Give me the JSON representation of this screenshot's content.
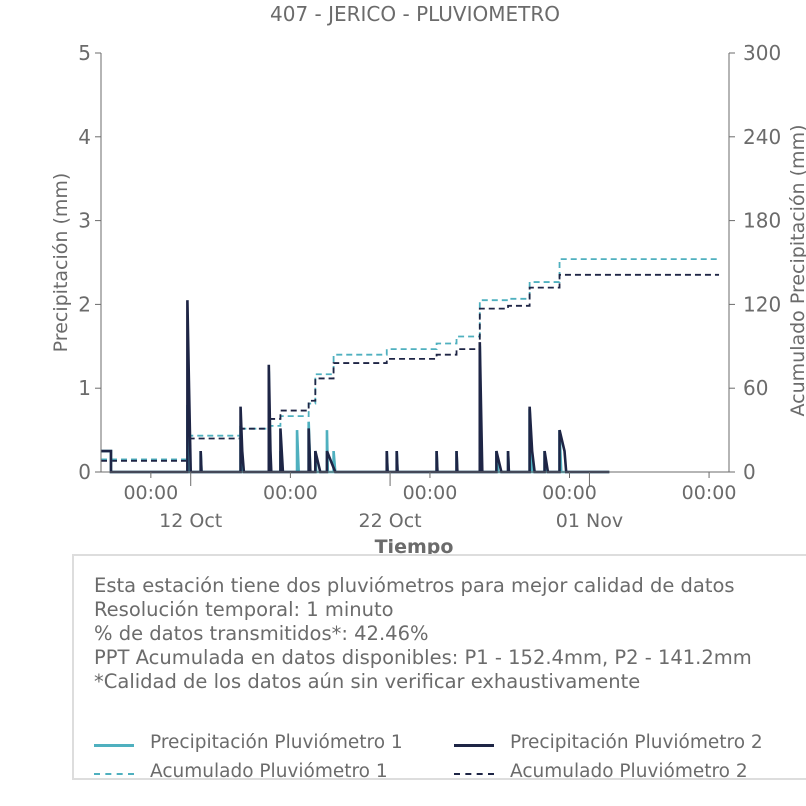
{
  "colors": {
    "p1": "#4fb0bf",
    "p2": "#1e2545",
    "axis": "#6b6b6b"
  },
  "chart_data": {
    "type": "line",
    "title": "407 - JERICO - PLUVIOMETRO",
    "xlabel": "Tiempo",
    "ylabel_left": "Precipitación (mm)",
    "ylabel_right": "Acumulado Precipitación (mm)",
    "ylim_left": [
      0,
      5
    ],
    "ylim_right": [
      0,
      300
    ],
    "yticks_left": [
      "0",
      "1",
      "2",
      "3",
      "4",
      "5"
    ],
    "yticks_right": [
      "0",
      "60",
      "120",
      "180",
      "240",
      "300"
    ],
    "xlim": [
      "2023-10-07T12:00",
      "2023-11-08T00:00"
    ],
    "xticks_time": [
      {
        "x": "2023-10-10T00:00",
        "label": "00:00"
      },
      {
        "x": "2023-10-17T00:00",
        "label": "00:00"
      },
      {
        "x": "2023-10-24T00:00",
        "label": "00:00"
      },
      {
        "x": "2023-10-31T00:00",
        "label": "00:00"
      },
      {
        "x": "2023-11-07T00:00",
        "label": "00:00"
      }
    ],
    "xticks_date": [
      {
        "x": "2023-10-12T00:00",
        "label": "12 Oct"
      },
      {
        "x": "2023-10-22T00:00",
        "label": "22 Oct"
      },
      {
        "x": "2023-11-01T00:00",
        "label": "01 Nov"
      }
    ],
    "legend_position": "bottom",
    "grid": false,
    "series": [
      {
        "name": "Precipitación Pluviómetro 1",
        "axis": "left",
        "style": "solid",
        "color": "#4fb0bf",
        "points": [
          [
            "2023-10-07T12:00",
            0.25
          ],
          [
            "2023-10-08T00:00",
            0.25
          ],
          [
            "2023-10-08T00:00",
            0
          ],
          [
            "2023-10-11T20:00",
            0
          ],
          [
            "2023-10-11T20:00",
            0.8
          ],
          [
            "2023-10-11T21:00",
            0
          ],
          [
            "2023-10-12T12:00",
            0
          ],
          [
            "2023-10-12T12:00",
            0.25
          ],
          [
            "2023-10-12T13:00",
            0
          ],
          [
            "2023-10-14T12:00",
            0
          ],
          [
            "2023-10-14T12:00",
            0.55
          ],
          [
            "2023-10-14T15:00",
            0
          ],
          [
            "2023-10-15T22:00",
            0
          ],
          [
            "2023-10-15T22:00",
            1.2
          ],
          [
            "2023-10-15T23:00",
            0
          ],
          [
            "2023-10-16T12:00",
            0
          ],
          [
            "2023-10-16T12:00",
            0.25
          ],
          [
            "2023-10-16T13:00",
            0
          ],
          [
            "2023-10-17T08:00",
            0
          ],
          [
            "2023-10-17T08:00",
            0.5
          ],
          [
            "2023-10-17T10:00",
            0
          ],
          [
            "2023-10-17T22:00",
            0
          ],
          [
            "2023-10-17T22:00",
            0.6
          ],
          [
            "2023-10-18T00:00",
            0
          ],
          [
            "2023-10-18T06:00",
            0
          ],
          [
            "2023-10-18T06:00",
            0.25
          ],
          [
            "2023-10-18T07:00",
            0
          ],
          [
            "2023-10-18T20:00",
            0
          ],
          [
            "2023-10-18T20:00",
            0.5
          ],
          [
            "2023-10-18T21:00",
            0
          ],
          [
            "2023-10-19T04:00",
            0
          ],
          [
            "2023-10-19T04:00",
            0.25
          ],
          [
            "2023-10-19T06:00",
            0
          ],
          [
            "2023-10-21T20:00",
            0
          ],
          [
            "2023-10-21T20:00",
            0.25
          ],
          [
            "2023-10-21T21:00",
            0
          ],
          [
            "2023-10-22T08:00",
            0
          ],
          [
            "2023-10-22T08:00",
            0.25
          ],
          [
            "2023-10-22T09:00",
            0
          ],
          [
            "2023-10-24T08:00",
            0
          ],
          [
            "2023-10-24T08:00",
            0.25
          ],
          [
            "2023-10-24T09:00",
            0
          ],
          [
            "2023-10-25T08:00",
            0
          ],
          [
            "2023-10-25T08:00",
            0.25
          ],
          [
            "2023-10-25T09:00",
            0
          ],
          [
            "2023-10-26T12:00",
            0
          ],
          [
            "2023-10-26T12:00",
            1.5
          ],
          [
            "2023-10-26T13:00",
            0
          ],
          [
            "2023-10-27T08:00",
            0
          ],
          [
            "2023-10-27T08:00",
            0.25
          ],
          [
            "2023-10-27T10:00",
            0
          ],
          [
            "2023-10-27T22:00",
            0
          ],
          [
            "2023-10-27T22:00",
            0.25
          ],
          [
            "2023-10-27T23:00",
            0
          ],
          [
            "2023-10-29T00:00",
            0
          ],
          [
            "2023-10-29T00:00",
            0.75
          ],
          [
            "2023-10-29T03:00",
            0
          ],
          [
            "2023-10-29T18:00",
            0
          ],
          [
            "2023-10-29T18:00",
            0.25
          ],
          [
            "2023-10-29T20:00",
            0
          ],
          [
            "2023-10-30T12:00",
            0
          ],
          [
            "2023-10-30T12:00",
            0.5
          ],
          [
            "2023-10-30T14:00",
            0
          ],
          [
            "2023-11-02T00:00",
            0
          ]
        ]
      },
      {
        "name": "Precipitación Pluviómetro 2",
        "axis": "left",
        "style": "solid",
        "color": "#1e2545",
        "points": [
          [
            "2023-10-07T12:00",
            0.25
          ],
          [
            "2023-10-08T00:00",
            0.25
          ],
          [
            "2023-10-08T00:00",
            0
          ],
          [
            "2023-10-11T20:00",
            0
          ],
          [
            "2023-10-11T20:00",
            2.05
          ],
          [
            "2023-10-11T22:00",
            1.0
          ],
          [
            "2023-10-12T00:00",
            0
          ],
          [
            "2023-10-12T12:00",
            0
          ],
          [
            "2023-10-12T12:00",
            0.25
          ],
          [
            "2023-10-12T13:00",
            0
          ],
          [
            "2023-10-14T12:00",
            0
          ],
          [
            "2023-10-14T12:00",
            0.78
          ],
          [
            "2023-10-14T14:00",
            0.25
          ],
          [
            "2023-10-14T16:00",
            0
          ],
          [
            "2023-10-15T22:00",
            0
          ],
          [
            "2023-10-15T22:00",
            1.28
          ],
          [
            "2023-10-16T00:00",
            0.25
          ],
          [
            "2023-10-16T01:00",
            0
          ],
          [
            "2023-10-16T12:00",
            0
          ],
          [
            "2023-10-16T12:00",
            0.52
          ],
          [
            "2023-10-16T15:00",
            0
          ],
          [
            "2023-10-17T22:00",
            0
          ],
          [
            "2023-10-17T22:00",
            0.52
          ],
          [
            "2023-10-18T00:00",
            0
          ],
          [
            "2023-10-18T06:00",
            0
          ],
          [
            "2023-10-18T06:00",
            0.25
          ],
          [
            "2023-10-18T12:00",
            0
          ],
          [
            "2023-10-18T20:00",
            0
          ],
          [
            "2023-10-18T20:00",
            0.25
          ],
          [
            "2023-10-19T06:00",
            0
          ],
          [
            "2023-10-21T20:00",
            0
          ],
          [
            "2023-10-21T20:00",
            0.25
          ],
          [
            "2023-10-21T21:00",
            0
          ],
          [
            "2023-10-22T08:00",
            0
          ],
          [
            "2023-10-22T08:00",
            0.25
          ],
          [
            "2023-10-22T09:00",
            0
          ],
          [
            "2023-10-24T08:00",
            0
          ],
          [
            "2023-10-24T08:00",
            0.25
          ],
          [
            "2023-10-24T09:00",
            0
          ],
          [
            "2023-10-25T08:00",
            0
          ],
          [
            "2023-10-25T08:00",
            0.25
          ],
          [
            "2023-10-25T09:00",
            0
          ],
          [
            "2023-10-26T12:00",
            0
          ],
          [
            "2023-10-26T12:00",
            1.55
          ],
          [
            "2023-10-26T14:00",
            0.5
          ],
          [
            "2023-10-26T15:00",
            0
          ],
          [
            "2023-10-27T08:00",
            0
          ],
          [
            "2023-10-27T08:00",
            0.25
          ],
          [
            "2023-10-27T14:00",
            0
          ],
          [
            "2023-10-27T22:00",
            0
          ],
          [
            "2023-10-27T22:00",
            0.25
          ],
          [
            "2023-10-27T23:00",
            0
          ],
          [
            "2023-10-29T00:00",
            0
          ],
          [
            "2023-10-29T00:00",
            0.78
          ],
          [
            "2023-10-29T03:00",
            0.25
          ],
          [
            "2023-10-29T06:00",
            0
          ],
          [
            "2023-10-29T18:00",
            0
          ],
          [
            "2023-10-29T18:00",
            0.25
          ],
          [
            "2023-10-29T22:00",
            0
          ],
          [
            "2023-10-30T12:00",
            0
          ],
          [
            "2023-10-30T12:00",
            0.5
          ],
          [
            "2023-10-30T18:00",
            0.25
          ],
          [
            "2023-10-30T20:00",
            0
          ],
          [
            "2023-11-02T00:00",
            0
          ]
        ]
      },
      {
        "name": "Acumulado Pluviómetro 1",
        "axis": "right",
        "style": "dashed",
        "color": "#4fb0bf",
        "points": [
          [
            "2023-10-07T12:00",
            9
          ],
          [
            "2023-10-11T20:00",
            9
          ],
          [
            "2023-10-11T20:00",
            26
          ],
          [
            "2023-10-14T12:00",
            26
          ],
          [
            "2023-10-14T12:00",
            31
          ],
          [
            "2023-10-15T22:00",
            31
          ],
          [
            "2023-10-15T22:00",
            33
          ],
          [
            "2023-10-16T12:00",
            33
          ],
          [
            "2023-10-16T12:00",
            40
          ],
          [
            "2023-10-17T22:00",
            40
          ],
          [
            "2023-10-17T22:00",
            49
          ],
          [
            "2023-10-18T06:00",
            49
          ],
          [
            "2023-10-18T06:00",
            70
          ],
          [
            "2023-10-19T04:00",
            70
          ],
          [
            "2023-10-19T04:00",
            84
          ],
          [
            "2023-10-21T20:00",
            84
          ],
          [
            "2023-10-21T20:00",
            88
          ],
          [
            "2023-10-24T08:00",
            88
          ],
          [
            "2023-10-24T08:00",
            92
          ],
          [
            "2023-10-25T08:00",
            92
          ],
          [
            "2023-10-25T08:00",
            97
          ],
          [
            "2023-10-26T12:00",
            97
          ],
          [
            "2023-10-26T12:00",
            123
          ],
          [
            "2023-10-27T22:00",
            123
          ],
          [
            "2023-10-27T22:00",
            124
          ],
          [
            "2023-10-29T00:00",
            124
          ],
          [
            "2023-10-29T00:00",
            136
          ],
          [
            "2023-10-30T12:00",
            136
          ],
          [
            "2023-10-30T12:00",
            152.4
          ],
          [
            "2023-11-07T12:00",
            152.4
          ]
        ]
      },
      {
        "name": "Acumulado Pluviómetro 2",
        "axis": "right",
        "style": "dashed",
        "color": "#1e2545",
        "points": [
          [
            "2023-10-07T12:00",
            8
          ],
          [
            "2023-10-11T20:00",
            8
          ],
          [
            "2023-10-11T20:00",
            24
          ],
          [
            "2023-10-14T12:00",
            24
          ],
          [
            "2023-10-14T12:00",
            31
          ],
          [
            "2023-10-15T22:00",
            31
          ],
          [
            "2023-10-15T22:00",
            38
          ],
          [
            "2023-10-16T12:00",
            38
          ],
          [
            "2023-10-16T12:00",
            44
          ],
          [
            "2023-10-17T22:00",
            44
          ],
          [
            "2023-10-17T22:00",
            51
          ],
          [
            "2023-10-18T06:00",
            51
          ],
          [
            "2023-10-18T06:00",
            67
          ],
          [
            "2023-10-19T04:00",
            67
          ],
          [
            "2023-10-19T04:00",
            78
          ],
          [
            "2023-10-21T20:00",
            78
          ],
          [
            "2023-10-21T20:00",
            81
          ],
          [
            "2023-10-24T08:00",
            81
          ],
          [
            "2023-10-24T08:00",
            84
          ],
          [
            "2023-10-25T08:00",
            84
          ],
          [
            "2023-10-25T08:00",
            88
          ],
          [
            "2023-10-26T12:00",
            88
          ],
          [
            "2023-10-26T12:00",
            117
          ],
          [
            "2023-10-27T22:00",
            117
          ],
          [
            "2023-10-27T22:00",
            119
          ],
          [
            "2023-10-29T00:00",
            119
          ],
          [
            "2023-10-29T00:00",
            132
          ],
          [
            "2023-10-30T12:00",
            132
          ],
          [
            "2023-10-30T12:00",
            141.2
          ],
          [
            "2023-11-07T12:00",
            141.2
          ]
        ]
      }
    ]
  },
  "info": {
    "lines": [
      "Esta estación tiene dos pluviómetros para mejor calidad de datos",
      "Resolución temporal: 1 minuto",
      "% de datos transmitidos*: 42.46%",
      "PPT Acumulada en datos disponibles: P1 - 152.4mm, P2 - 141.2mm",
      "*Calidad de los datos aún sin verificar exhaustivamente"
    ]
  },
  "legend": {
    "p1_rain": "Precipitación Pluviómetro 1",
    "p2_rain": "Precipitación Pluviómetro 2",
    "p1_acc": "Acumulado Pluviómetro 1",
    "p2_acc": "Acumulado Pluviómetro 2"
  }
}
